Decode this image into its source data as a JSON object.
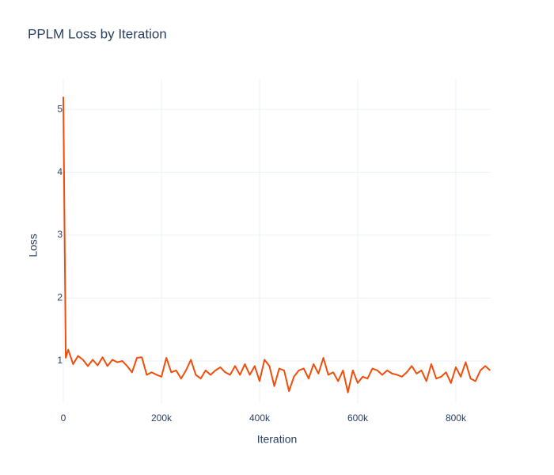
{
  "chart_data": {
    "type": "line",
    "title": "PPLM Loss by Iteration",
    "x_label": "Iteration",
    "y_label": "Loss",
    "x": [
      0,
      5000,
      10000,
      20000,
      30000,
      40000,
      50000,
      60000,
      70000,
      80000,
      90000,
      100000,
      110000,
      120000,
      130000,
      140000,
      150000,
      160000,
      170000,
      180000,
      190000,
      200000,
      210000,
      220000,
      230000,
      240000,
      250000,
      260000,
      270000,
      280000,
      290000,
      300000,
      310000,
      320000,
      330000,
      340000,
      350000,
      360000,
      370000,
      380000,
      390000,
      400000,
      410000,
      420000,
      430000,
      440000,
      450000,
      460000,
      470000,
      480000,
      490000,
      500000,
      510000,
      520000,
      530000,
      540000,
      550000,
      560000,
      570000,
      580000,
      590000,
      600000,
      610000,
      620000,
      630000,
      640000,
      650000,
      660000,
      670000,
      680000,
      690000,
      700000,
      710000,
      720000,
      730000,
      740000,
      750000,
      760000,
      770000,
      780000,
      790000,
      800000,
      810000,
      820000,
      830000,
      840000,
      850000,
      860000,
      870000
    ],
    "series": [
      {
        "name": "Loss",
        "color": "#f04e0a",
        "values": [
          5.2,
          1.05,
          1.18,
          0.95,
          1.08,
          1.02,
          0.92,
          1.02,
          0.93,
          1.06,
          0.92,
          1.02,
          0.98,
          1.0,
          0.92,
          0.82,
          1.05,
          1.06,
          0.78,
          0.82,
          0.78,
          0.75,
          1.05,
          0.82,
          0.85,
          0.72,
          0.85,
          1.02,
          0.78,
          0.72,
          0.85,
          0.78,
          0.85,
          0.9,
          0.82,
          0.78,
          0.92,
          0.78,
          0.95,
          0.78,
          0.92,
          0.68,
          1.02,
          0.92,
          0.6,
          0.88,
          0.85,
          0.52,
          0.75,
          0.85,
          0.88,
          0.72,
          0.95,
          0.8,
          1.05,
          0.78,
          0.82,
          0.68,
          0.85,
          0.5,
          0.85,
          0.65,
          0.75,
          0.72,
          0.88,
          0.85,
          0.78,
          0.85,
          0.8,
          0.78,
          0.75,
          0.82,
          0.92,
          0.8,
          0.85,
          0.68,
          0.95,
          0.72,
          0.75,
          0.82,
          0.65,
          0.9,
          0.75,
          0.98,
          0.72,
          0.68,
          0.85,
          0.92,
          0.85
        ]
      }
    ],
    "xlim": [
      0,
      871000
    ],
    "ylim": [
      0.32,
      5.48
    ],
    "xticks": [
      0,
      {
        "value": 200000,
        "label": "200k"
      },
      {
        "value": 400000,
        "label": "400k"
      },
      {
        "value": 600000,
        "label": "600k"
      },
      {
        "value": 800000,
        "label": "800k"
      }
    ],
    "yticks": [
      1,
      2,
      3,
      4,
      5
    ],
    "grid": true
  }
}
